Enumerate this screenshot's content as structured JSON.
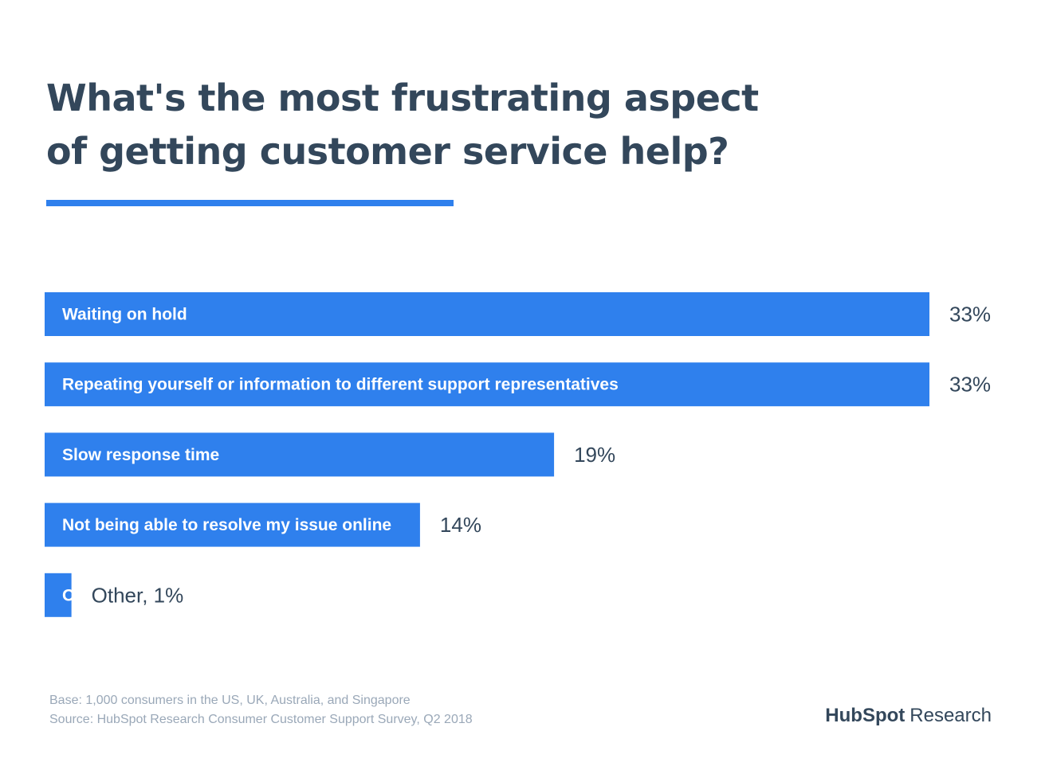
{
  "title_lines": [
    "What's the most frustrating aspect",
    "of getting customer service help?"
  ],
  "colors": {
    "bar": "#2f80ed",
    "text": "#33475b",
    "muted": "#9aa8b8",
    "accent": "#ff7a59"
  },
  "chart_data": {
    "type": "bar",
    "orientation": "horizontal",
    "title": "What's the most frustrating aspect of getting customer service help?",
    "categories": [
      "Waiting on hold",
      "Repeating yourself or information to different support representatives",
      "Slow response time",
      "Not being able to resolve my issue online",
      "Other"
    ],
    "values": [
      33,
      33,
      19,
      14,
      1
    ],
    "value_labels": [
      "33%",
      "33%",
      "19%",
      "14%",
      "Other, 1%"
    ],
    "unit": "%",
    "xlim": [
      0,
      33
    ],
    "grid": false,
    "legend": "none"
  },
  "footer": {
    "base": "Base: 1,000 consumers in the US, UK, Australia, and Singapore",
    "source": "Source: HubSpot Research Consumer Customer Support Survey, Q2 2018"
  },
  "brand": {
    "hub": "HubSpot",
    "research": "Research"
  }
}
